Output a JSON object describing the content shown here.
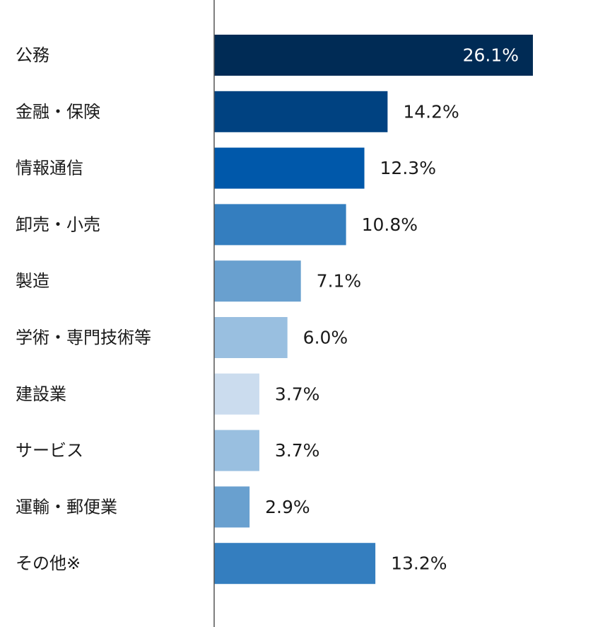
{
  "chart_data": {
    "type": "bar",
    "orientation": "horizontal",
    "categories": [
      "公務",
      "金融・保険",
      "情報通信",
      "卸売・小売",
      "製造",
      "学術・専門技術等",
      "建設業",
      "サービス",
      "運輸・郵便業",
      "その他※"
    ],
    "values": [
      26.1,
      14.2,
      12.3,
      10.8,
      7.1,
      6.0,
      3.7,
      3.7,
      2.9,
      13.2
    ],
    "value_labels": [
      "26.1%",
      "14.2%",
      "12.3%",
      "10.8%",
      "7.1%",
      "6.0%",
      "3.7%",
      "3.7%",
      "2.9%",
      "13.2%"
    ],
    "bar_colors": [
      "#002b55",
      "#004281",
      "#0058aa",
      "#347ebf",
      "#69a0cf",
      "#99bfe0",
      "#cbdcee",
      "#99bfe0",
      "#69a0cf",
      "#347ebf"
    ],
    "title": "",
    "xlabel": "",
    "ylabel": "",
    "xlim": [
      0,
      28
    ],
    "grid": false,
    "legend": "none"
  }
}
